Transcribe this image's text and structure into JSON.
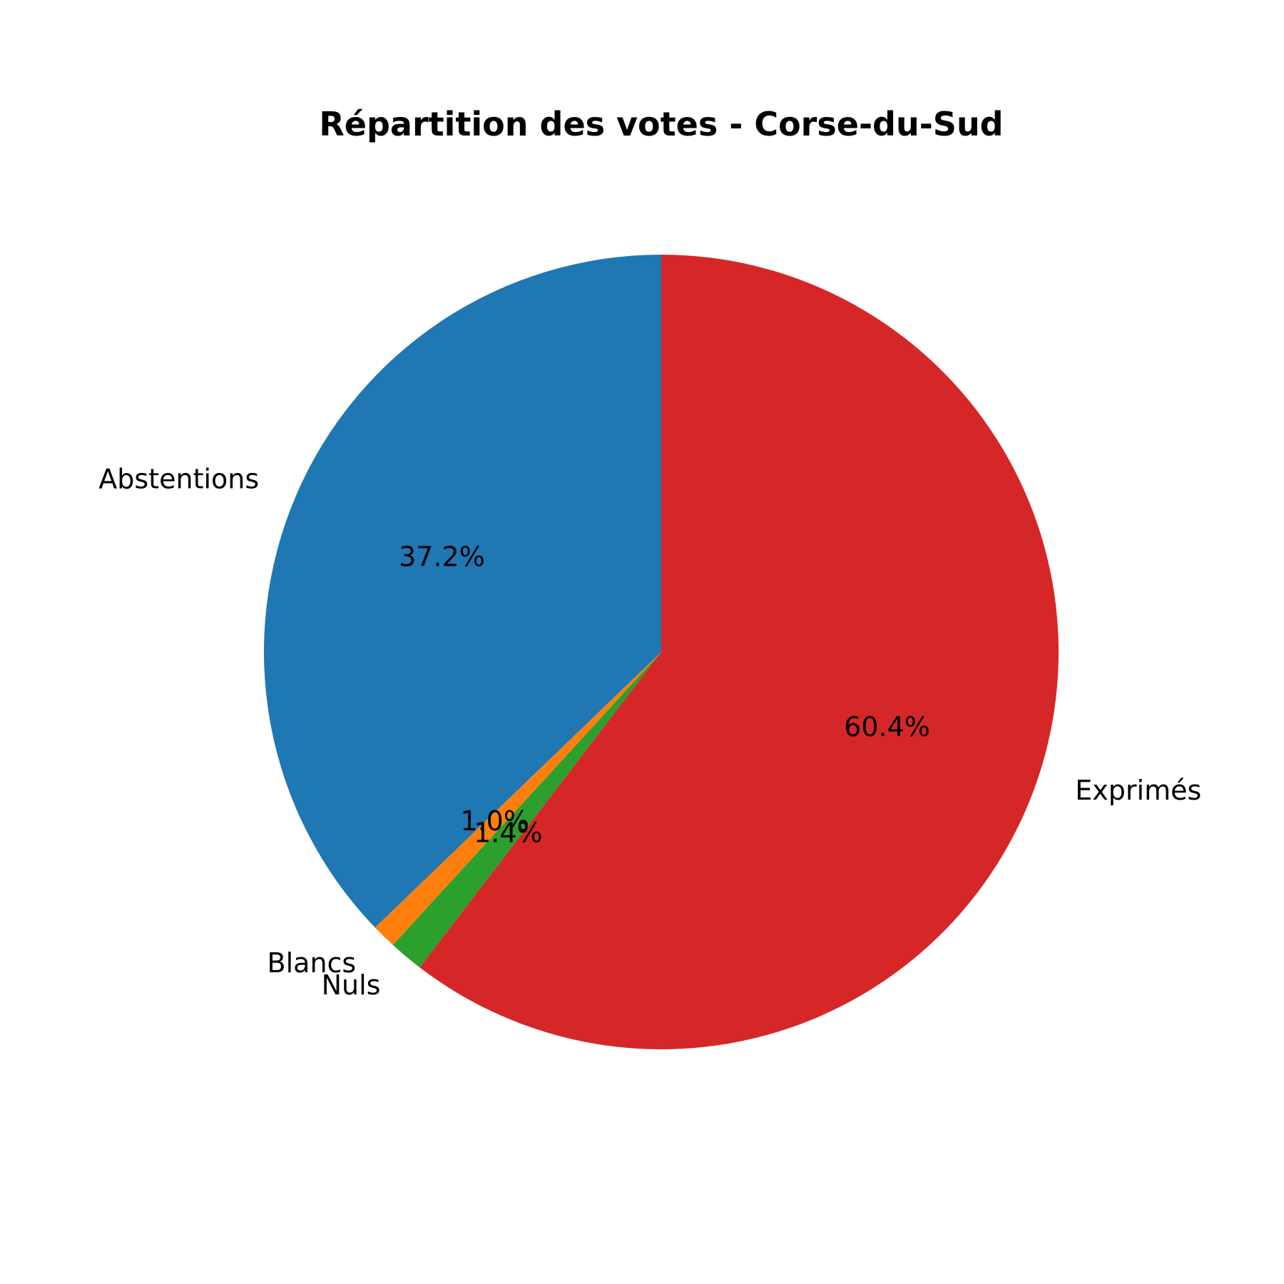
{
  "chart_data": {
    "type": "pie",
    "title": "Répartition des votes - Corse-du-Sud",
    "slices": [
      {
        "label": "Abstentions",
        "value": 37.2,
        "pct_label": "37.2%",
        "color": "#1f77b4"
      },
      {
        "label": "Blancs",
        "value": 1.0,
        "pct_label": "1.0%",
        "color": "#ff7f0e"
      },
      {
        "label": "Nuls",
        "value": 1.4,
        "pct_label": "1.4%",
        "color": "#2ca02c"
      },
      {
        "label": "Exprimés",
        "value": 60.4,
        "pct_label": "60.4%",
        "color": "#d62728"
      }
    ],
    "start_angle_deg": 90,
    "direction": "counterclockwise"
  }
}
